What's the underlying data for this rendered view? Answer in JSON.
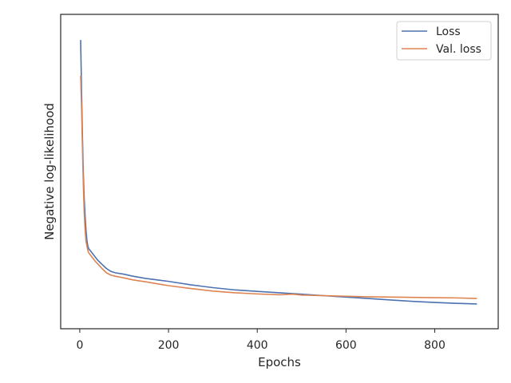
{
  "chart_data": {
    "type": "line",
    "title": "",
    "xlabel": "Epochs",
    "ylabel": "Negative log-likelihood",
    "xlim": [
      -43,
      943
    ],
    "ylim": [
      0,
      1
    ],
    "xticks": [
      0,
      200,
      400,
      600,
      800
    ],
    "xtick_labels": [
      "0",
      "200",
      "400",
      "600",
      "800"
    ],
    "yticks_shown": false,
    "grid": false,
    "legend": {
      "placement": "upper right"
    },
    "series": [
      {
        "name": "Loss",
        "color": "#4c72b0",
        "x": [
          2,
          4,
          6,
          8,
          10,
          12,
          14,
          16,
          18,
          20,
          25,
          30,
          35,
          40,
          50,
          60,
          70,
          80,
          100,
          120,
          150,
          180,
          200,
          250,
          300,
          350,
          400,
          450,
          500,
          550,
          600,
          650,
          700,
          750,
          800,
          850,
          895
        ],
        "y": [
          0.955,
          0.78,
          0.62,
          0.49,
          0.4,
          0.34,
          0.29,
          0.255,
          0.235,
          0.225,
          0.215,
          0.205,
          0.195,
          0.185,
          0.17,
          0.155,
          0.145,
          0.14,
          0.135,
          0.128,
          0.12,
          0.114,
          0.11,
          0.098,
          0.088,
          0.08,
          0.075,
          0.07,
          0.065,
          0.06,
          0.055,
          0.05,
          0.045,
          0.04,
          0.036,
          0.033,
          0.031
        ]
      },
      {
        "name": "Val. loss",
        "color": "#dd8452",
        "x": [
          2,
          4,
          6,
          8,
          10,
          12,
          14,
          16,
          18,
          20,
          25,
          30,
          35,
          40,
          50,
          60,
          70,
          80,
          100,
          120,
          150,
          180,
          200,
          250,
          300,
          350,
          400,
          450,
          480,
          500,
          550,
          600,
          650,
          700,
          750,
          800,
          850,
          895
        ],
        "y": [
          0.83,
          0.72,
          0.58,
          0.45,
          0.35,
          0.29,
          0.25,
          0.235,
          0.22,
          0.21,
          0.2,
          0.19,
          0.18,
          0.172,
          0.155,
          0.14,
          0.132,
          0.128,
          0.122,
          0.115,
          0.108,
          0.1,
          0.095,
          0.085,
          0.076,
          0.07,
          0.066,
          0.063,
          0.065,
          0.062,
          0.06,
          0.058,
          0.056,
          0.055,
          0.054,
          0.053,
          0.052,
          0.05
        ]
      }
    ]
  }
}
